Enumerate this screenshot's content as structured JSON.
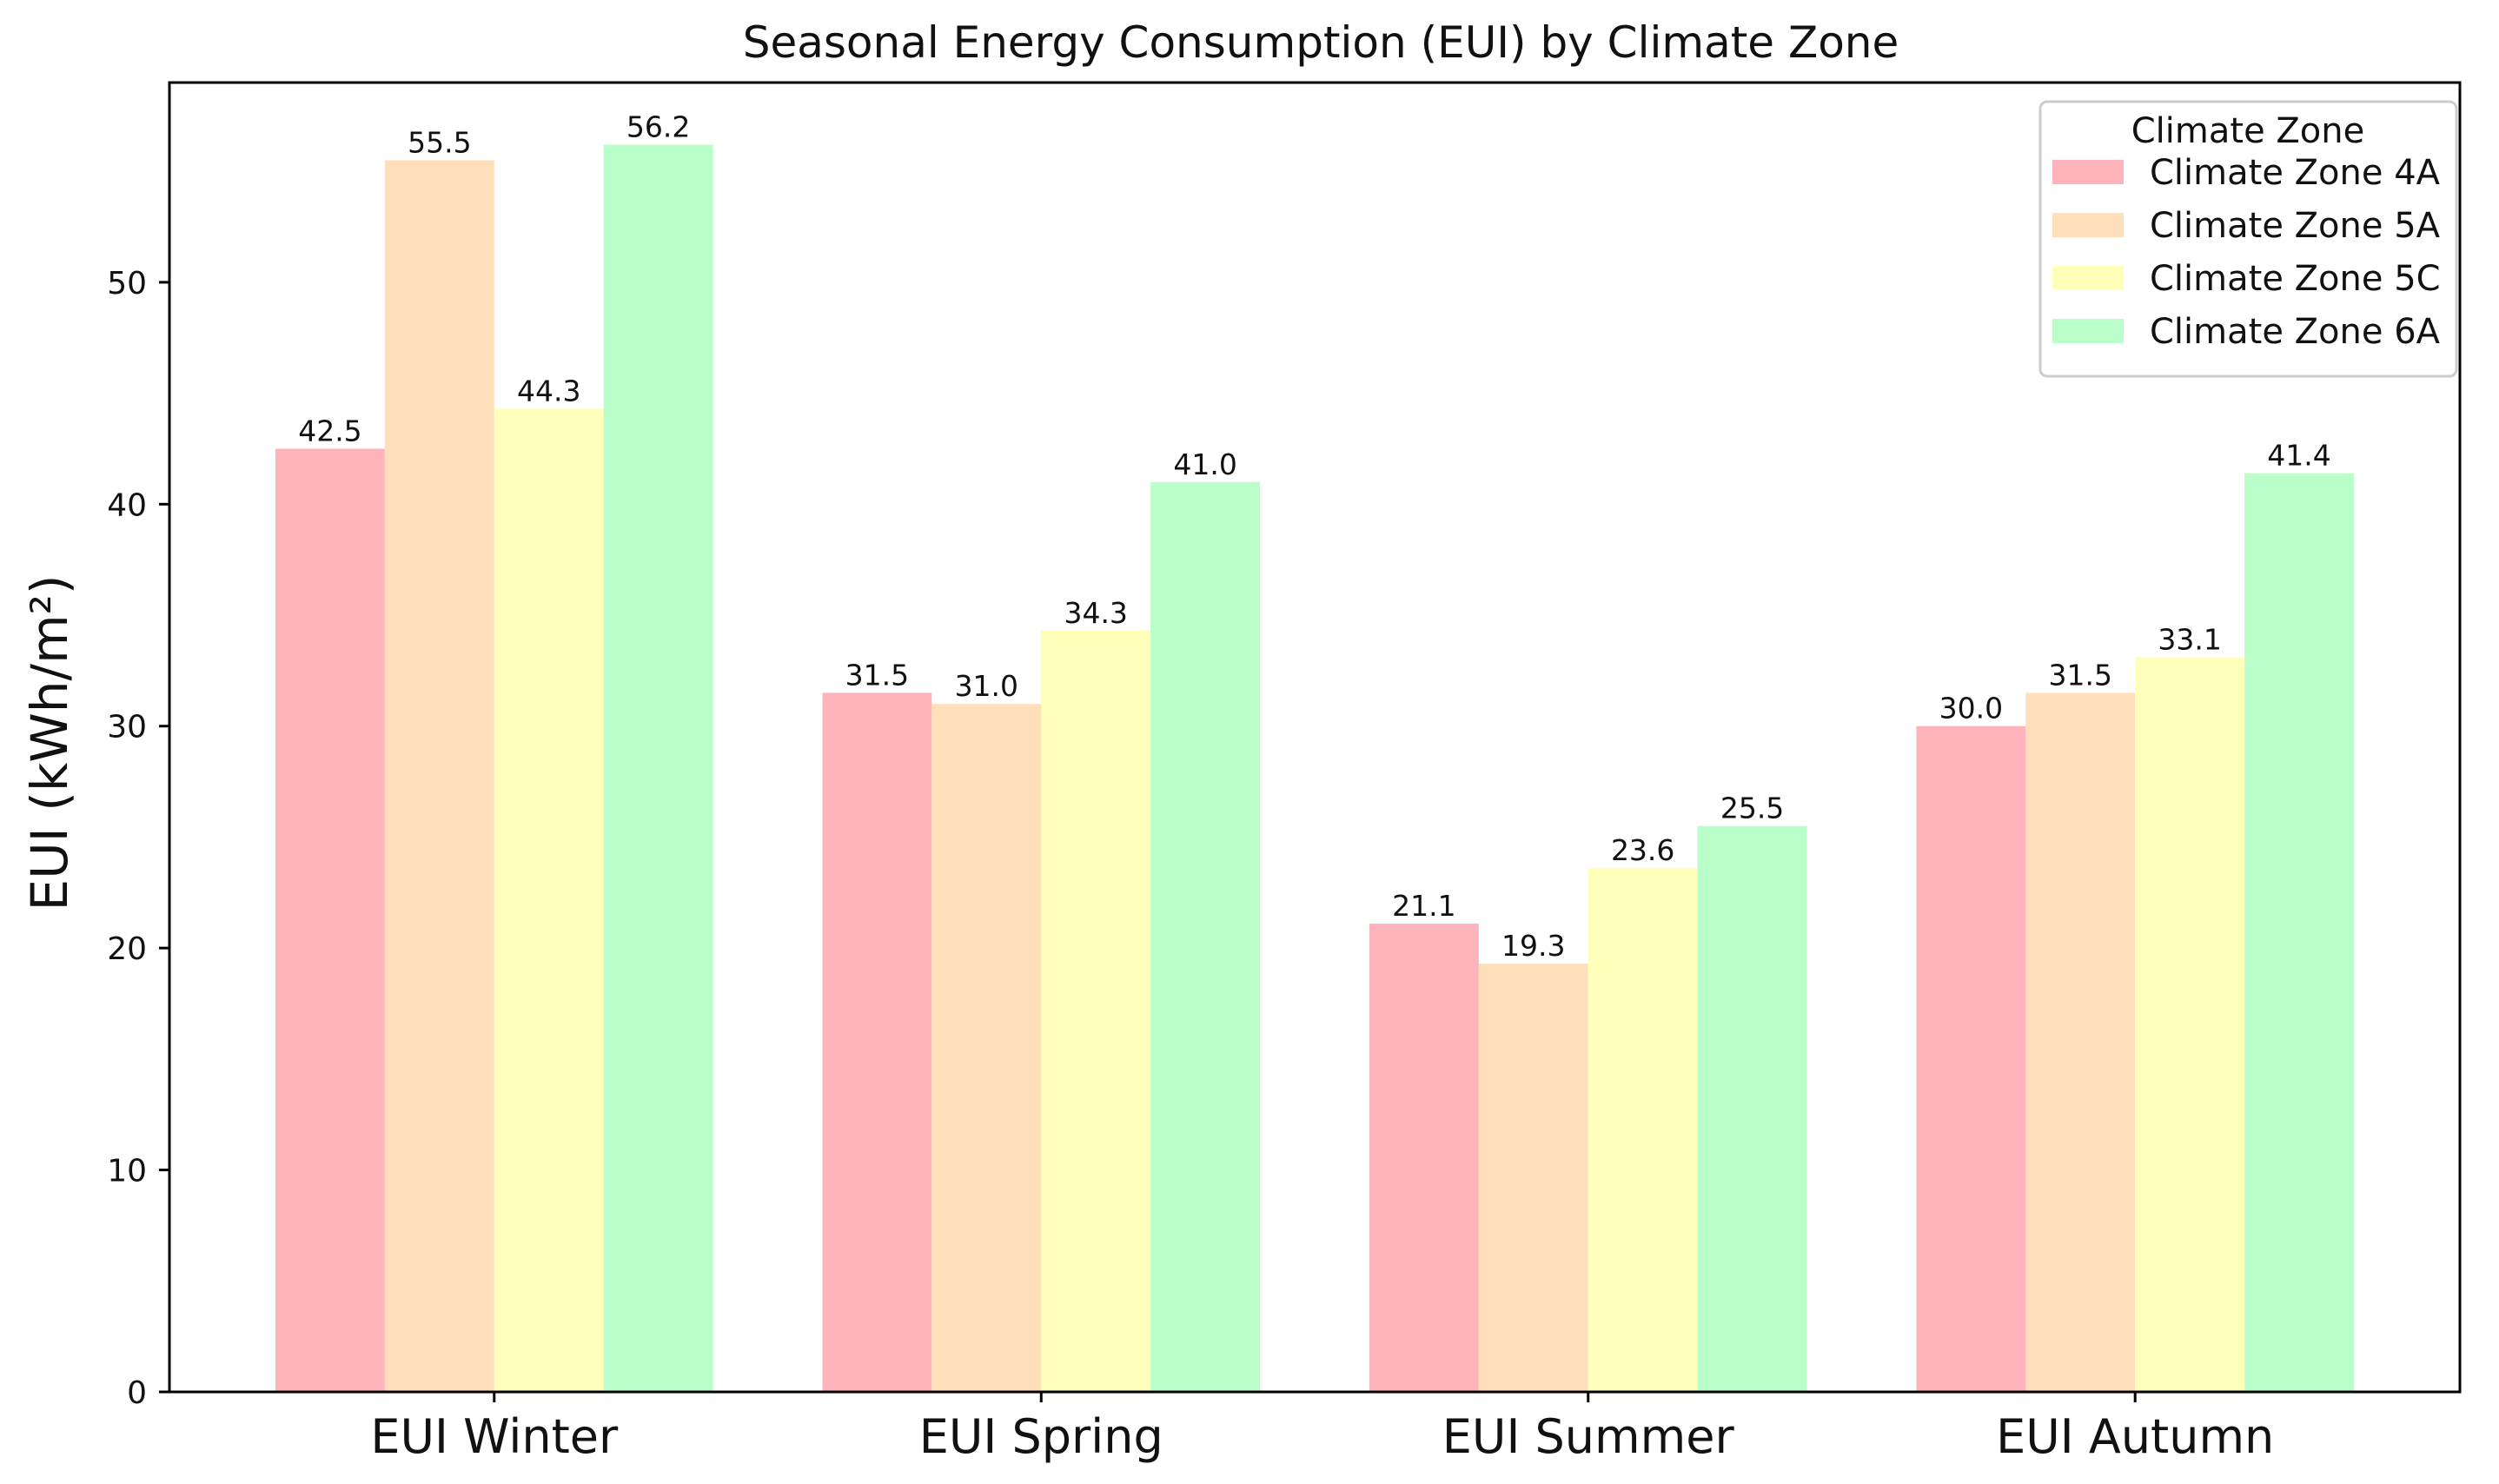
{
  "chart_data": {
    "type": "bar",
    "title": "Seasonal Energy Consumption (EUI) by Climate Zone",
    "xlabel": "",
    "ylabel": "EUI (kWh/m²)",
    "ylim": [
      0,
      59
    ],
    "yticks": [
      0,
      10,
      20,
      30,
      40,
      50
    ],
    "categories": [
      "EUI Winter",
      "EUI Spring",
      "EUI Summer",
      "EUI Autumn"
    ],
    "legend_title": "Climate Zone",
    "legend_position": "top-right",
    "series": [
      {
        "name": "Climate Zone 4A",
        "color": "#FFB3BA",
        "values": [
          42.5,
          31.5,
          21.1,
          30.0
        ]
      },
      {
        "name": "Climate Zone 5A",
        "color": "#FFDFBA",
        "values": [
          55.5,
          31.0,
          19.3,
          31.5
        ]
      },
      {
        "name": "Climate Zone 5C",
        "color": "#FFFFBA",
        "values": [
          44.3,
          34.3,
          23.6,
          33.1
        ]
      },
      {
        "name": "Climate Zone 6A",
        "color": "#BAFFC9",
        "values": [
          56.2,
          41.0,
          25.5,
          41.4
        ]
      }
    ]
  }
}
